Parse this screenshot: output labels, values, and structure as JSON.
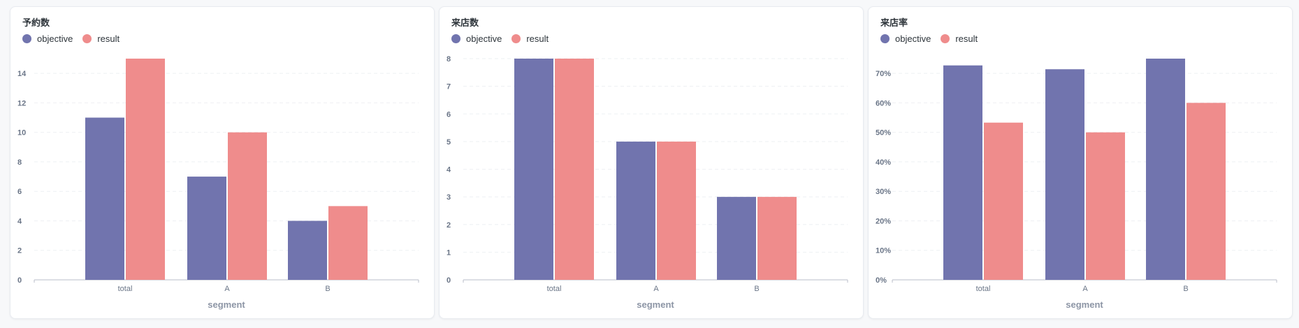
{
  "colors": {
    "objective": "#7174ae",
    "result": "#ef8c8c"
  },
  "legend": {
    "objective": "objective",
    "result": "result"
  },
  "chart_data": [
    {
      "type": "bar",
      "title": "予約数",
      "xlabel": "segment",
      "ylabel": "",
      "categories": [
        "total",
        "A",
        "B"
      ],
      "series": [
        {
          "name": "objective",
          "values": [
            11,
            7,
            4
          ]
        },
        {
          "name": "result",
          "values": [
            15,
            10,
            5
          ]
        }
      ],
      "ylim": [
        0,
        15
      ],
      "yticks": [
        0,
        2,
        4,
        6,
        8,
        10,
        12,
        14
      ],
      "ytick_labels": [
        "0",
        "2",
        "4",
        "6",
        "8",
        "10",
        "12",
        "14"
      ],
      "grid": true,
      "legend_position": "top-left"
    },
    {
      "type": "bar",
      "title": "来店数",
      "xlabel": "segment",
      "ylabel": "",
      "categories": [
        "total",
        "A",
        "B"
      ],
      "series": [
        {
          "name": "objective",
          "values": [
            8,
            5,
            3
          ]
        },
        {
          "name": "result",
          "values": [
            8,
            5,
            3
          ]
        }
      ],
      "ylim": [
        0,
        8
      ],
      "yticks": [
        0,
        1,
        2,
        3,
        4,
        5,
        6,
        7,
        8
      ],
      "ytick_labels": [
        "0",
        "1",
        "2",
        "3",
        "4",
        "5",
        "6",
        "7",
        "8"
      ],
      "grid": true,
      "legend_position": "top-left"
    },
    {
      "type": "bar",
      "title": "来店率",
      "xlabel": "segment",
      "ylabel": "",
      "categories": [
        "total",
        "A",
        "B"
      ],
      "series": [
        {
          "name": "objective",
          "values": [
            0.727,
            0.714,
            0.75
          ]
        },
        {
          "name": "result",
          "values": [
            0.533,
            0.5,
            0.6
          ]
        }
      ],
      "ylim": [
        0,
        0.75
      ],
      "yticks": [
        0,
        0.1,
        0.2,
        0.3,
        0.4,
        0.5,
        0.6,
        0.7
      ],
      "ytick_labels": [
        "0%",
        "10%",
        "20%",
        "30%",
        "40%",
        "50%",
        "60%",
        "70%"
      ],
      "grid": true,
      "legend_position": "top-left"
    }
  ]
}
